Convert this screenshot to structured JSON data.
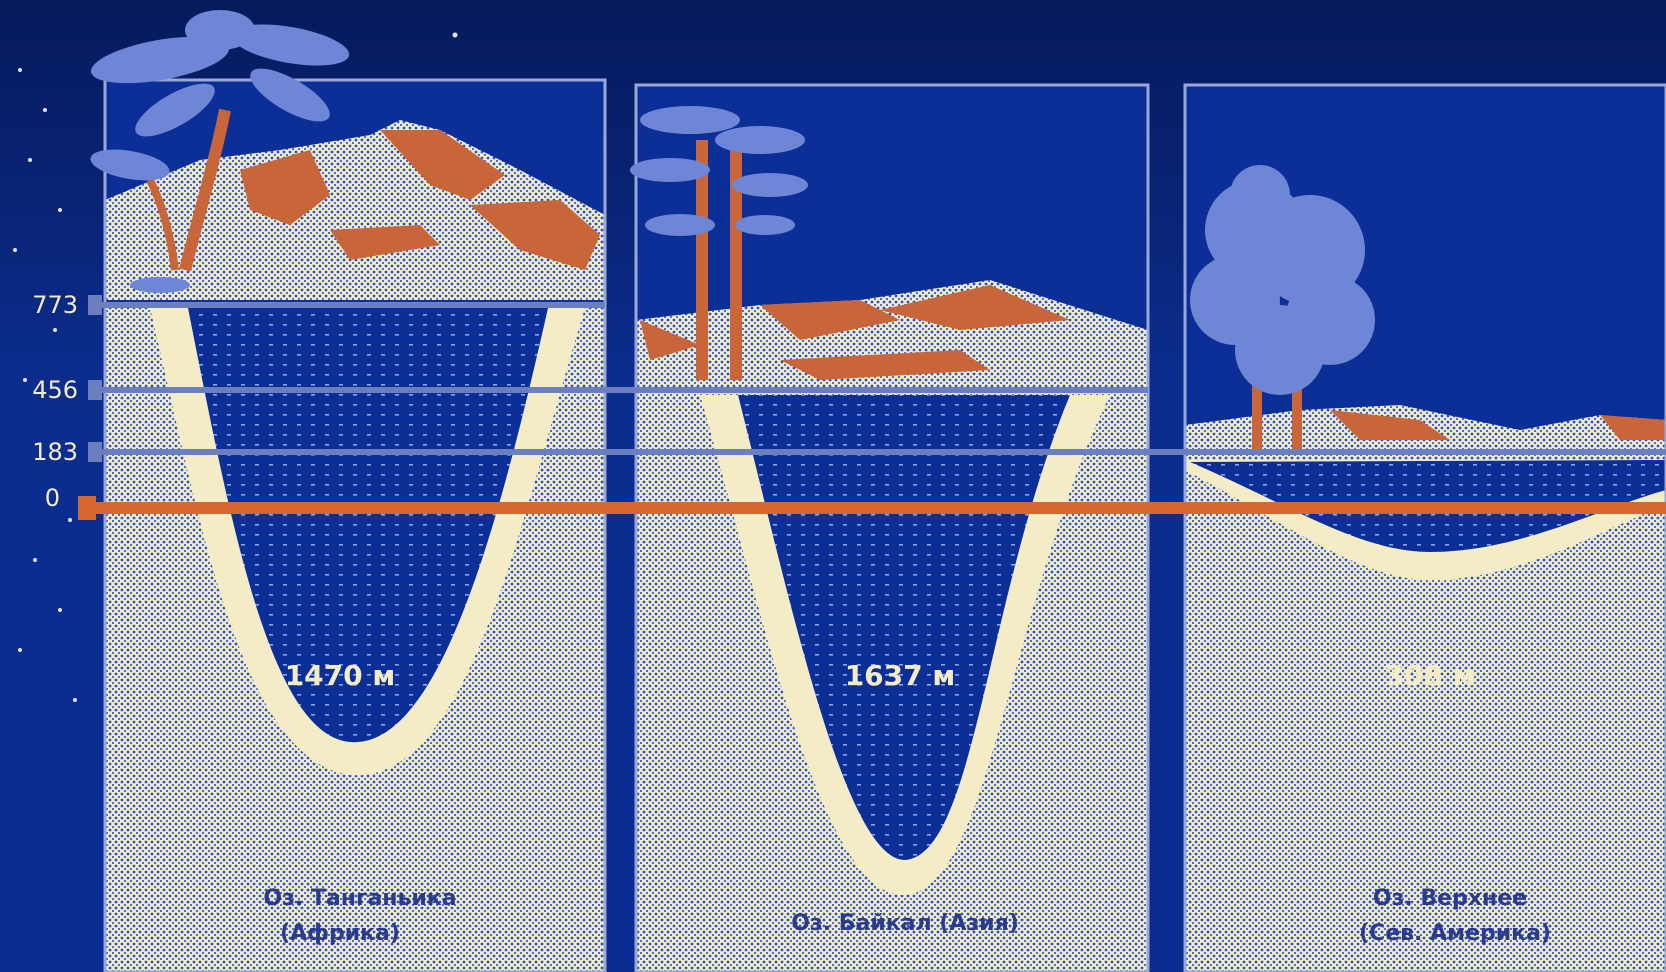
{
  "levels": [
    "773",
    "456",
    "183",
    "0"
  ],
  "lakes": [
    {
      "depth_label": "1470 м",
      "caption_line1": "Оз. Танганьика",
      "caption_line2": "(Африка)"
    },
    {
      "depth_label": "1637 м",
      "caption_line1": "Оз. Байкал (Азия)",
      "caption_line2": ""
    },
    {
      "depth_label": "308 м",
      "caption_line1": "Оз. Верхнее",
      "caption_line2": "(Сев. Америка)"
    }
  ],
  "colors": {
    "background": "#0a2a8a",
    "sand": "#f3ecc6",
    "water": "#0b2f96",
    "sea_level": "#d8672e",
    "mountain": "#c8663a",
    "tree": "#6f86d6"
  }
}
